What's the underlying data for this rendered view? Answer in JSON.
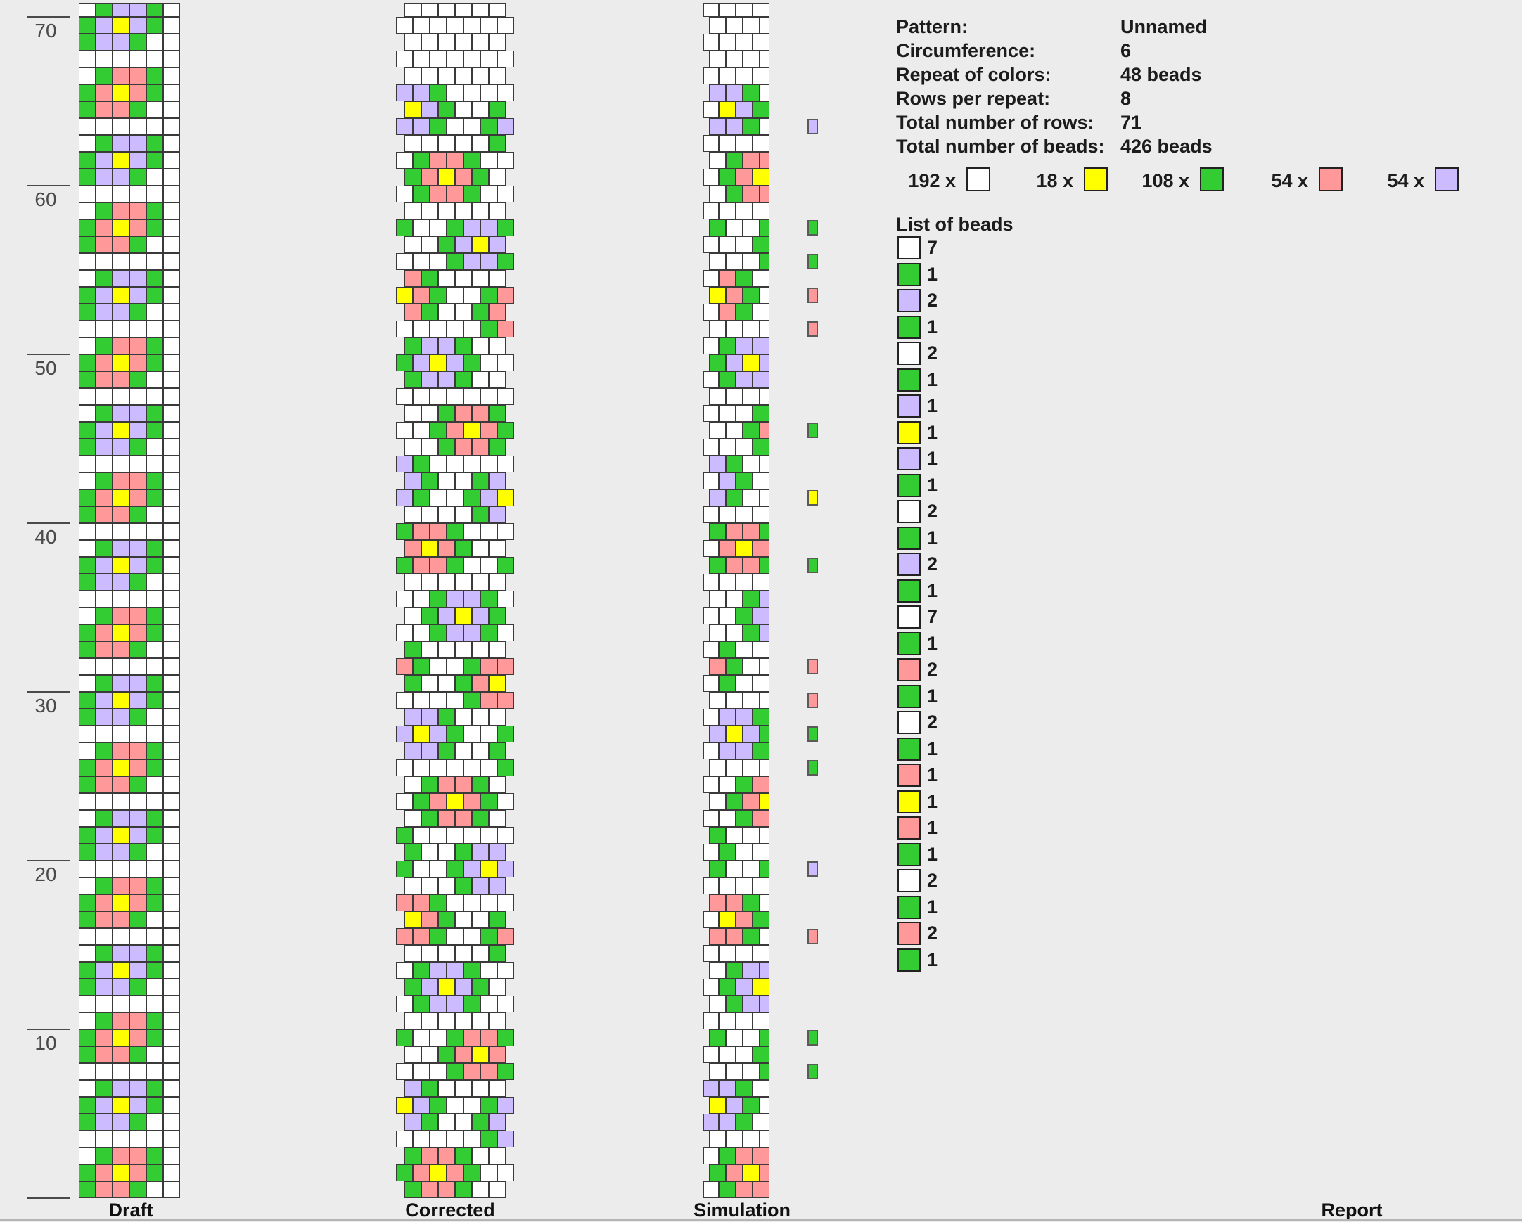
{
  "panels": {
    "draft_label": "Draft",
    "corrected_label": "Corrected",
    "simulation_label": "Simulation",
    "report_label": "Report"
  },
  "colors": {
    "white": "#ffffff",
    "yellow": "#ffff00",
    "green": "#33cc33",
    "pink": "#ff9999",
    "purple": "#ccbbff",
    "background": "#ececec",
    "grid_line": "#3a3a3a",
    "tick": "#4a4a4a",
    "text": "#1c1c1c"
  },
  "chart_data": {
    "type": "heatmap",
    "description": "Bead crochet rope pattern; 6 beads circumference; rows listed bottom-to-top; W=white G=green R=pink P=purple Y=yellow",
    "columns": 6,
    "total_rows": 71,
    "total_beads": 426,
    "repeat_rows_bottom_to_top": [
      "GRRGWW",
      "GRYRGW",
      "WGRRGW",
      "WWWWWW",
      "GPPGWW",
      "GPYPGW",
      "WGPPGW",
      "WWWWWW"
    ],
    "color_key": {
      "W": "white",
      "G": "green",
      "R": "pink",
      "P": "purple",
      "Y": "yellow"
    },
    "draft_tick_rows": [
      10,
      20,
      30,
      40,
      50,
      60,
      70
    ],
    "simulation_detached_beads": [
      {
        "row": 7,
        "color": "G"
      },
      {
        "row": 9,
        "color": "G"
      },
      {
        "row": 15,
        "color": "R"
      },
      {
        "row": 19,
        "color": "P"
      },
      {
        "row": 25,
        "color": "G"
      },
      {
        "row": 27,
        "color": "G"
      },
      {
        "row": 29,
        "color": "R"
      },
      {
        "row": 31,
        "color": "R"
      },
      {
        "row": 37,
        "color": "G"
      },
      {
        "row": 41,
        "color": "Y"
      },
      {
        "row": 45,
        "color": "G"
      },
      {
        "row": 51,
        "color": "R"
      },
      {
        "row": 53,
        "color": "R"
      },
      {
        "row": 55,
        "color": "G"
      },
      {
        "row": 57,
        "color": "G"
      },
      {
        "row": 63,
        "color": "P"
      }
    ],
    "simulation_left_half_beads": [
      {
        "row": 4,
        "color": "P"
      },
      {
        "row": 6,
        "color": "P"
      }
    ]
  },
  "report": {
    "fields": [
      {
        "label": "Pattern:",
        "value": "Unnamed"
      },
      {
        "label": "Circumference:",
        "value": "6"
      },
      {
        "label": "Repeat of colors:",
        "value": "48 beads"
      },
      {
        "label": "Rows per repeat:",
        "value": "8"
      },
      {
        "label": "Total number of rows:",
        "value": "71"
      },
      {
        "label": "Total number of beads:",
        "value": "426 beads"
      }
    ],
    "totals": [
      {
        "count": "192 x",
        "color": "white"
      },
      {
        "count": "18 x",
        "color": "yellow"
      },
      {
        "count": "108 x",
        "color": "green"
      },
      {
        "count": "54 x",
        "color": "pink"
      },
      {
        "count": "54 x",
        "color": "purple"
      }
    ],
    "list_title": "List of beads",
    "list_of_beads": [
      {
        "color": "white",
        "count": "7"
      },
      {
        "color": "green",
        "count": "1"
      },
      {
        "color": "purple",
        "count": "2"
      },
      {
        "color": "green",
        "count": "1"
      },
      {
        "color": "white",
        "count": "2"
      },
      {
        "color": "green",
        "count": "1"
      },
      {
        "color": "purple",
        "count": "1"
      },
      {
        "color": "yellow",
        "count": "1"
      },
      {
        "color": "purple",
        "count": "1"
      },
      {
        "color": "green",
        "count": "1"
      },
      {
        "color": "white",
        "count": "2"
      },
      {
        "color": "green",
        "count": "1"
      },
      {
        "color": "purple",
        "count": "2"
      },
      {
        "color": "green",
        "count": "1"
      },
      {
        "color": "white",
        "count": "7"
      },
      {
        "color": "green",
        "count": "1"
      },
      {
        "color": "pink",
        "count": "2"
      },
      {
        "color": "green",
        "count": "1"
      },
      {
        "color": "white",
        "count": "2"
      },
      {
        "color": "green",
        "count": "1"
      },
      {
        "color": "pink",
        "count": "1"
      },
      {
        "color": "yellow",
        "count": "1"
      },
      {
        "color": "pink",
        "count": "1"
      },
      {
        "color": "green",
        "count": "1"
      },
      {
        "color": "white",
        "count": "2"
      },
      {
        "color": "green",
        "count": "1"
      },
      {
        "color": "pink",
        "count": "2"
      },
      {
        "color": "green",
        "count": "1"
      }
    ]
  }
}
